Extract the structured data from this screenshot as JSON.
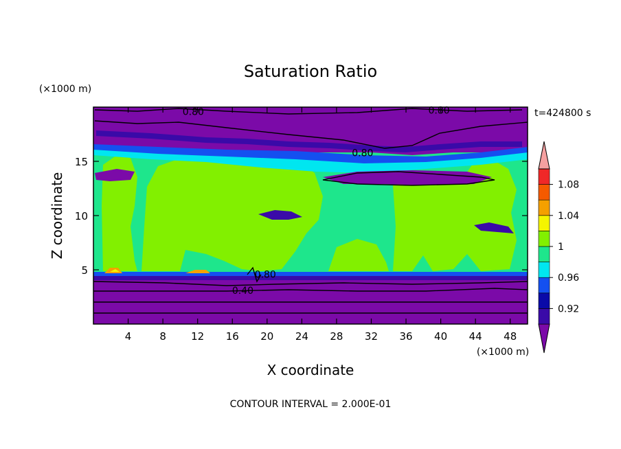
{
  "chart_data": {
    "type": "heatmap",
    "title": "Saturation Ratio",
    "xlabel": "X coordinate",
    "ylabel": "Z coordinate",
    "x_unit": "(×1000 m)",
    "y_unit": "(×1000 m)",
    "time_label": "t=424800 s",
    "footer": "CONTOUR INTERVAL = 2.000E-01",
    "xlim": [
      0,
      50
    ],
    "ylim": [
      0,
      20
    ],
    "x_ticks": [
      4,
      8,
      12,
      16,
      20,
      24,
      28,
      32,
      36,
      40,
      44,
      48
    ],
    "y_ticks": [
      5,
      10,
      15
    ],
    "colorbar": {
      "levels": [
        0.9,
        0.92,
        0.94,
        0.96,
        0.98,
        1.0,
        1.02,
        1.04,
        1.06,
        1.08,
        1.1
      ],
      "tick_labels": [
        "0.92",
        "0.96",
        "1",
        "1.04",
        "1.08"
      ],
      "tick_values": [
        0.92,
        0.96,
        1.0,
        1.04,
        1.08
      ],
      "colors": [
        "#7b0aa8",
        "#3a0aa8",
        "#0a0aa8",
        "#1450f0",
        "#00e6f0",
        "#1ee68c",
        "#82f000",
        "#f5f500",
        "#f5a000",
        "#f55a00",
        "#f02828",
        "#f5a0a0"
      ]
    },
    "contour_labels": [
      {
        "text": "0.80",
        "x": 11.5,
        "z": 19.6
      },
      {
        "text": "0.80",
        "x": 39.8,
        "z": 19.7
      },
      {
        "text": "0.80",
        "x": 31.0,
        "z": 15.8
      },
      {
        "text": "0.80",
        "x": 19.8,
        "z": 4.6
      },
      {
        "text": "0.40",
        "x": 17.2,
        "z": 3.1
      }
    ]
  }
}
